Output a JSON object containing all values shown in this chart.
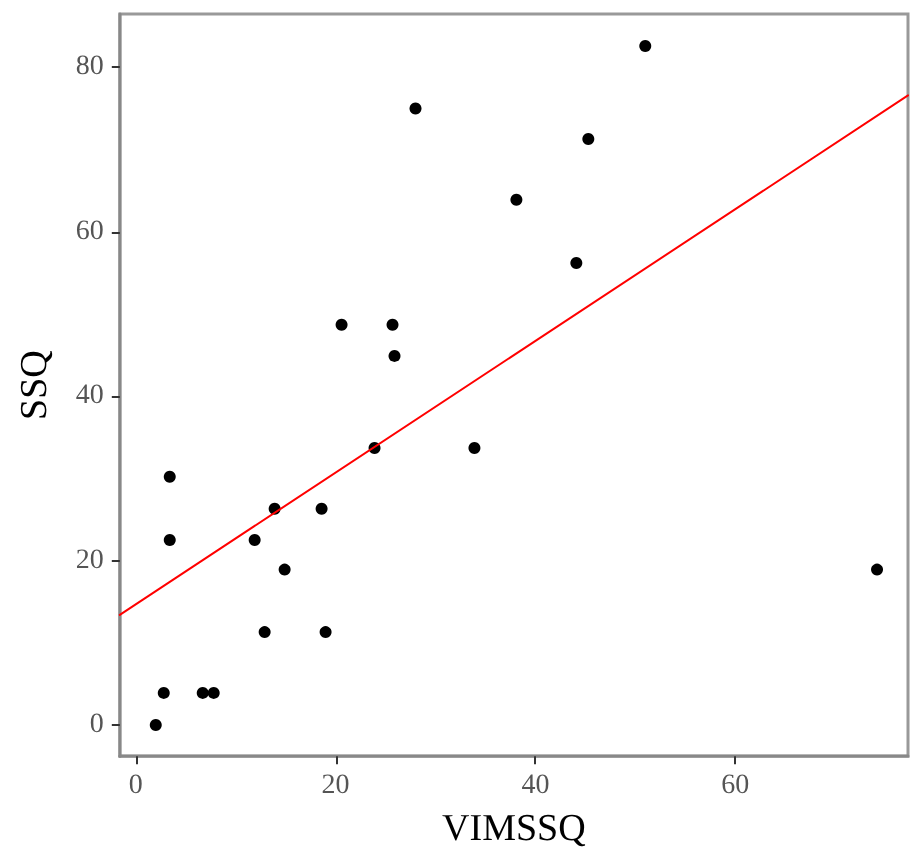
{
  "chart_data": {
    "type": "scatter",
    "xlabel": "VIMSSQ",
    "ylabel": "SSQ",
    "xlim": [
      -1.6,
      77.3
    ],
    "ylim": [
      -3.8,
      86.5
    ],
    "xticks": [
      0,
      20,
      40,
      60
    ],
    "yticks": [
      0,
      20,
      40,
      60,
      80
    ],
    "grid": false,
    "marker": "circle",
    "series": [
      {
        "type": "scatter",
        "color": "#000000",
        "x": [
          2.0,
          2.8,
          3.4,
          3.4,
          6.7,
          7.8,
          11.9,
          12.9,
          13.9,
          14.9,
          18.6,
          19.0,
          20.6,
          23.9,
          25.7,
          25.9,
          28.0,
          33.9,
          38.1,
          44.1,
          45.3,
          51.0,
          74.2
        ],
        "values": [
          0,
          3.9,
          30.2,
          22.5,
          3.9,
          3.9,
          22.5,
          11.3,
          26.3,
          18.9,
          26.3,
          11.3,
          48.7,
          33.7,
          48.7,
          44.9,
          75.0,
          33.7,
          63.9,
          56.2,
          71.3,
          82.6,
          18.9
        ]
      },
      {
        "type": "line",
        "color": "#ff0000",
        "x": [
          -1.6,
          77.3
        ],
        "values": [
          13.4,
          76.6
        ],
        "marker": "none",
        "line_style": "solid"
      }
    ]
  }
}
